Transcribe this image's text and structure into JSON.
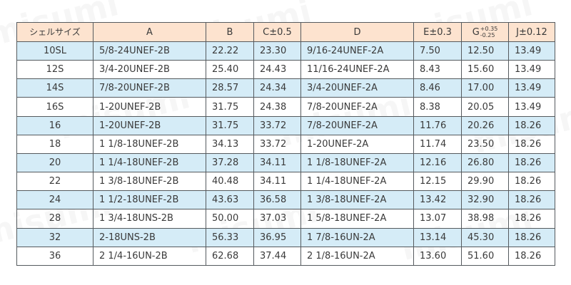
{
  "watermark_text": "misumi",
  "colors": {
    "header_bg": "#fde3cf",
    "shade_bg": "#d5ecf7",
    "border": "#555a5e"
  },
  "headers": {
    "shell_size": "シェルサイズ",
    "a": "A",
    "b": "B",
    "c": "C±0.5",
    "d": "D",
    "e": "E±0.3",
    "g": "G",
    "g_tol_plus": "+0.35",
    "g_tol_minus": "-0.25",
    "j": "J±0.12"
  },
  "rows": [
    {
      "size": "10SL",
      "a": "5/8-24UNEF-2B",
      "b": "22.22",
      "c": "23.30",
      "d": "9/16-24UNEF-2A",
      "e": "7.50",
      "g": "12.50",
      "j": "13.49"
    },
    {
      "size": "12S",
      "a": "3/4-20UNEF-2B",
      "b": "25.40",
      "c": "24.43",
      "d": "11/16-24UNEF-2A",
      "e": "8.43",
      "g": "15.60",
      "j": "13.49"
    },
    {
      "size": "14S",
      "a": "7/8-20UNEF-2B",
      "b": "28.57",
      "c": "24.34",
      "d": "3/4-20UNEF-2A",
      "e": "8.46",
      "g": "17.00",
      "j": "13.49"
    },
    {
      "size": "16S",
      "a": "1-20UNEF-2B",
      "b": "31.75",
      "c": "24.38",
      "d": "7/8-20UNEF-2A",
      "e": "8.38",
      "g": "20.05",
      "j": "13.49"
    },
    {
      "size": "16",
      "a": "1-20UNEF-2B",
      "b": "31.75",
      "c": "33.72",
      "d": "7/8-20UNEF-2A",
      "e": "11.76",
      "g": "20.26",
      "j": "18.26"
    },
    {
      "size": "18",
      "a": "1 1/8-18UNEF-2B",
      "b": "34.13",
      "c": "33.72",
      "d": "1-20UNEF-2A",
      "e": "11.74",
      "g": "23.50",
      "j": "18.26"
    },
    {
      "size": "20",
      "a": "1 1/4-18UNEF-2B",
      "b": "37.28",
      "c": "34.11",
      "d": "1 1/8-18UNEF-2A",
      "e": "12.16",
      "g": "26.80",
      "j": "18.26"
    },
    {
      "size": "22",
      "a": "1 3/8-18UNEF-2B",
      "b": "40.48",
      "c": "34.11",
      "d": "1 1/4-18UNEF-2A",
      "e": "12.15",
      "g": "29.90",
      "j": "18.26"
    },
    {
      "size": "24",
      "a": "1 1/2-18UNEF-2B",
      "b": "43.63",
      "c": "36.58",
      "d": "1 3/8-18UNEF-2A",
      "e": "13.42",
      "g": "32.90",
      "j": "18.26"
    },
    {
      "size": "28",
      "a": "1 3/4-18UNS-2B",
      "b": "50.00",
      "c": "37.03",
      "d": "1 5/8-18UNEF-2A",
      "e": "13.07",
      "g": "38.98",
      "j": "18.26"
    },
    {
      "size": "32",
      "a": "2-18UNS-2B",
      "b": "56.33",
      "c": "36.95",
      "d": "1 7/8-16UN-2A",
      "e": "13.14",
      "g": "45.30",
      "j": "18.26"
    },
    {
      "size": "36",
      "a": "2 1/4-16UN-2B",
      "b": "62.68",
      "c": "37.44",
      "d": "2 1/8-16UN-2A",
      "e": "13.60",
      "g": "51.60",
      "j": "18.26"
    }
  ]
}
